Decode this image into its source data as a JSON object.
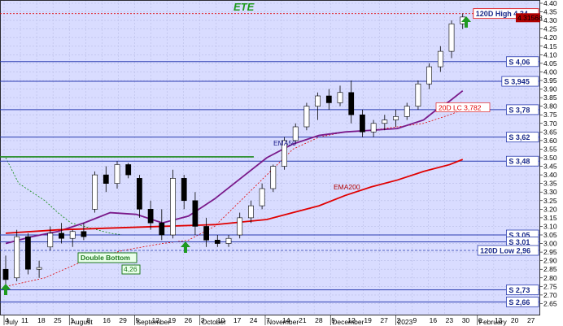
{
  "chart_data": {
    "type": "candlestick",
    "title": "ETE",
    "ylim": [
      2.6,
      4.4
    ],
    "yticks": [
      2.65,
      2.7,
      2.75,
      2.8,
      2.85,
      2.9,
      2.95,
      3.0,
      3.05,
      3.1,
      3.15,
      3.2,
      3.25,
      3.3,
      3.35,
      3.4,
      3.45,
      3.5,
      3.55,
      3.6,
      3.65,
      3.7,
      3.75,
      3.8,
      3.85,
      3.9,
      3.95,
      4.0,
      4.05,
      4.1,
      4.15,
      4.2,
      4.25,
      4.3,
      4.35,
      4.4
    ],
    "ytick_labels": [
      "2.65",
      "2.70",
      "2.75",
      "2.80",
      "2.85",
      "2.90",
      "2.95",
      "3.00",
      "3.05",
      "3.10",
      "3.15",
      "3.20",
      "3.25",
      "3.30",
      "3.35",
      "3.40",
      "3.45",
      "3.50",
      "3.55",
      "3.60",
      "3.65",
      "3.70",
      "3.75",
      "3.80",
      "3.85",
      "3.90",
      "3.95",
      "4.00",
      "4.05",
      "4.10",
      "4.15",
      "4.20",
      "4.25",
      "4.30",
      "4.35",
      "4.40"
    ],
    "x_day_labels": [
      "4",
      "11",
      "18",
      "25",
      "1",
      "8",
      "16",
      "29",
      "5",
      "12",
      "19",
      "26",
      "3",
      "10",
      "17",
      "24",
      "7",
      "14",
      "21",
      "28",
      "5",
      "12",
      "19",
      "27",
      "2",
      "9",
      "16",
      "23",
      "30",
      "6",
      "13",
      "20",
      "27"
    ],
    "x_month_labels": [
      {
        "label": "July",
        "at": 0
      },
      {
        "label": "August",
        "at": 4
      },
      {
        "label": "September",
        "at": 8
      },
      {
        "label": "October",
        "at": 12
      },
      {
        "label": "November",
        "at": 16
      },
      {
        "label": "December",
        "at": 20
      },
      {
        "label": "2023",
        "at": 24
      },
      {
        "label": "February",
        "at": 29
      }
    ],
    "levels": [
      {
        "name": "S 4,06",
        "value": 4.06
      },
      {
        "name": "S 3,945",
        "value": 3.945
      },
      {
        "name": "S 3,78",
        "value": 3.78
      },
      {
        "name": "S 3,62",
        "value": 3.62
      },
      {
        "name": "S 3,48",
        "value": 3.48
      },
      {
        "name": "S 3,05",
        "value": 3.05
      },
      {
        "name": "S 3,01",
        "value": 3.01
      },
      {
        "name": "S 2,73",
        "value": 2.73
      },
      {
        "name": "S 2,66",
        "value": 2.66
      }
    ],
    "high_low": [
      {
        "name": "120D High 4,34",
        "value": 4.34
      },
      {
        "name": "120D Low 2,96",
        "value": 2.96
      }
    ],
    "last_price": {
      "label": "4.31568",
      "value": 4.3157
    },
    "lc_label": {
      "name": "20D LC 3,782",
      "value": 3.782
    },
    "series": [
      {
        "name": "EMA50",
        "points": [
          [
            0,
            3.0
          ],
          [
            2,
            3.04
          ],
          [
            4,
            3.07
          ],
          [
            6,
            3.12
          ],
          [
            8,
            3.18
          ],
          [
            10,
            3.17
          ],
          [
            12,
            3.12
          ],
          [
            14,
            3.16
          ],
          [
            16,
            3.26
          ],
          [
            18,
            3.38
          ],
          [
            20,
            3.5
          ],
          [
            22,
            3.58
          ],
          [
            24,
            3.63
          ],
          [
            26,
            3.65
          ],
          [
            28,
            3.66
          ],
          [
            30,
            3.67
          ],
          [
            32,
            3.72
          ],
          [
            33,
            3.78
          ],
          [
            34,
            3.83
          ],
          [
            35,
            3.89
          ]
        ]
      },
      {
        "name": "EMA200",
        "points": [
          [
            0,
            3.06
          ],
          [
            4,
            3.08
          ],
          [
            8,
            3.09
          ],
          [
            12,
            3.1
          ],
          [
            16,
            3.11
          ],
          [
            20,
            3.14
          ],
          [
            22,
            3.18
          ],
          [
            24,
            3.22
          ],
          [
            26,
            3.28
          ],
          [
            28,
            3.33
          ],
          [
            30,
            3.37
          ],
          [
            32,
            3.42
          ],
          [
            34,
            3.46
          ],
          [
            35,
            3.49
          ]
        ]
      }
    ],
    "candles": [
      [
        0,
        2.85,
        2.93,
        2.74,
        2.79
      ],
      [
        1,
        2.8,
        3.08,
        2.78,
        3.04
      ],
      [
        2,
        3.04,
        3.06,
        2.82,
        2.85
      ],
      [
        3,
        2.85,
        2.9,
        2.8,
        2.86
      ],
      [
        4,
        2.98,
        3.1,
        2.96,
        3.06
      ],
      [
        5,
        3.06,
        3.12,
        3.0,
        3.03
      ],
      [
        6,
        3.03,
        3.08,
        2.98,
        3.07
      ],
      [
        7,
        3.07,
        3.12,
        3.02,
        3.04
      ],
      [
        8,
        3.2,
        3.42,
        3.18,
        3.4
      ],
      [
        9,
        3.4,
        3.45,
        3.3,
        3.35
      ],
      [
        10,
        3.35,
        3.48,
        3.32,
        3.46
      ],
      [
        11,
        3.46,
        3.47,
        3.38,
        3.4
      ],
      [
        12,
        3.38,
        3.4,
        3.15,
        3.2
      ],
      [
        13,
        3.2,
        3.25,
        3.08,
        3.12
      ],
      [
        14,
        3.12,
        3.2,
        3.02,
        3.05
      ],
      [
        15,
        3.05,
        3.43,
        3.03,
        3.38
      ],
      [
        16,
        3.38,
        3.4,
        3.2,
        3.25
      ],
      [
        17,
        3.25,
        3.3,
        3.05,
        3.1
      ],
      [
        18,
        3.1,
        3.15,
        2.98,
        3.02
      ],
      [
        19,
        3.02,
        3.05,
        2.98,
        3.0
      ],
      [
        20,
        3.0,
        3.05,
        2.98,
        3.03
      ],
      [
        21,
        3.05,
        3.18,
        3.03,
        3.15
      ],
      [
        22,
        3.15,
        3.25,
        3.12,
        3.22
      ],
      [
        23,
        3.22,
        3.35,
        3.2,
        3.32
      ],
      [
        24,
        3.32,
        3.46,
        3.3,
        3.45
      ],
      [
        25,
        3.45,
        3.62,
        3.43,
        3.6
      ],
      [
        26,
        3.6,
        3.7,
        3.58,
        3.68
      ],
      [
        27,
        3.68,
        3.82,
        3.66,
        3.8
      ],
      [
        28,
        3.8,
        3.88,
        3.72,
        3.86
      ],
      [
        29,
        3.86,
        3.9,
        3.78,
        3.82
      ],
      [
        30,
        3.82,
        3.92,
        3.8,
        3.88
      ],
      [
        31,
        3.88,
        3.95,
        3.7,
        3.75
      ],
      [
        32,
        3.75,
        3.78,
        3.62,
        3.65
      ],
      [
        33,
        3.65,
        3.72,
        3.62,
        3.7
      ],
      [
        34,
        3.7,
        3.75,
        3.66,
        3.72
      ],
      [
        35,
        3.72,
        3.78,
        3.68,
        3.74
      ],
      [
        36,
        3.74,
        3.82,
        3.72,
        3.8
      ],
      [
        37,
        3.8,
        3.95,
        3.78,
        3.93
      ],
      [
        38,
        3.93,
        4.05,
        3.9,
        4.03
      ],
      [
        39,
        4.03,
        4.15,
        4.0,
        4.12
      ],
      [
        40,
        4.12,
        4.3,
        4.08,
        4.28
      ],
      [
        41,
        4.28,
        4.34,
        4.25,
        4.32
      ]
    ],
    "annotations": [
      {
        "text": "EMA50",
        "color": "#1a1a8a"
      },
      {
        "text": "EMA200",
        "color": "#b00000"
      },
      {
        "text": "Double Bottom",
        "color": "#1f7a1f"
      },
      {
        "text": "4,26",
        "color": "#1f7a1f"
      }
    ],
    "colors": {
      "background": "#d9dcff",
      "level_line": "#2a3cb0",
      "ema50": "#7a1a8a",
      "ema200": "#e00000",
      "up_arrow": "#1f9a1f",
      "resistance_green": "#1f8a1f"
    },
    "grid": true
  }
}
